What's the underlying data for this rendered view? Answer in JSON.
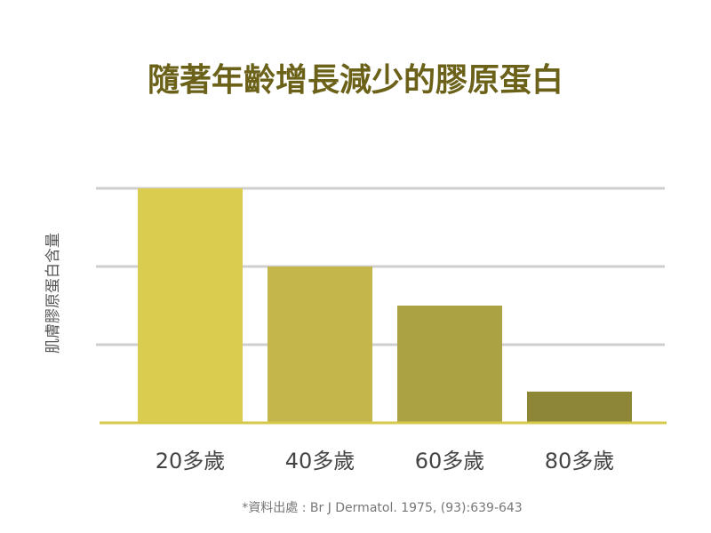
{
  "chart_data": {
    "type": "bar",
    "title": "隨著年齡增長減少的膠原蛋白",
    "y_label": "肌膚膠原蛋白含量",
    "categories": [
      "20多歲",
      "40多歲",
      "60多歲",
      "80多歲"
    ],
    "values": [
      3,
      2,
      1.5,
      0.4
    ],
    "colors": [
      "#d9cc4f",
      "#c4b64a",
      "#aaa243",
      "#8e8637"
    ],
    "ylim": [
      0,
      3
    ],
    "yticks": [
      1,
      2,
      3
    ],
    "grid": true,
    "source": "*資料出處 : Br J Dermatol. 1975, (93):639-643"
  }
}
